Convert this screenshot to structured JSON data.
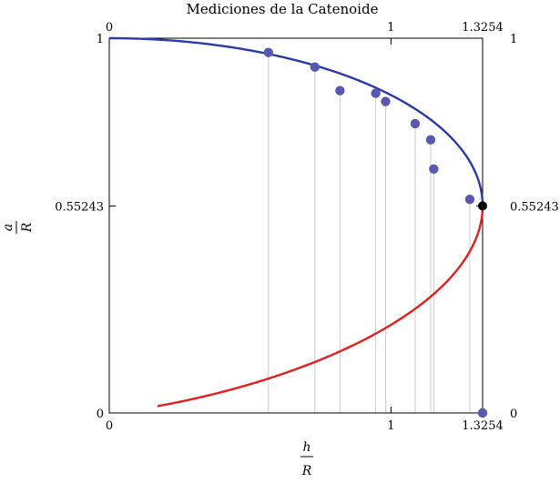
{
  "chart_data": {
    "type": "scatter",
    "title": "Mediciones de la Catenoide",
    "xlabel_num": "h",
    "xlabel_den": "R",
    "ylabel_num": "a",
    "ylabel_den": "R",
    "xlim": [
      0,
      1.3254
    ],
    "ylim": [
      0,
      1
    ],
    "grid": false,
    "x_ticks_bottom": [
      {
        "value": 0,
        "label": "0"
      },
      {
        "value": 1,
        "label": "1"
      },
      {
        "value": 1.3254,
        "label": "1.3254"
      }
    ],
    "x_ticks_top": [
      {
        "value": 0,
        "label": "0"
      },
      {
        "value": 1,
        "label": "1"
      },
      {
        "value": 1.3254,
        "label": "1.3254"
      }
    ],
    "y_ticks_left": [
      {
        "value": 0,
        "label": "0"
      },
      {
        "value": 0.55243,
        "label": "0.55243"
      },
      {
        "value": 1,
        "label": "1"
      }
    ],
    "y_ticks_right": [
      {
        "value": 0,
        "label": "0"
      },
      {
        "value": 0.55243,
        "label": "0.55243"
      },
      {
        "value": 1,
        "label": "1"
      }
    ],
    "curves": [
      {
        "branch": "upper",
        "color": "#2b3aa8"
      },
      {
        "branch": "lower",
        "color": "#e02020"
      }
    ],
    "critical_point": {
      "x": 1.3254,
      "y": 0.55243,
      "color": "#000000"
    },
    "points": [
      {
        "x": 0.565,
        "y": 0.962
      },
      {
        "x": 0.73,
        "y": 0.923
      },
      {
        "x": 0.819,
        "y": 0.86
      },
      {
        "x": 0.946,
        "y": 0.853
      },
      {
        "x": 0.981,
        "y": 0.831
      },
      {
        "x": 1.086,
        "y": 0.772
      },
      {
        "x": 1.141,
        "y": 0.729
      },
      {
        "x": 1.152,
        "y": 0.651
      },
      {
        "x": 1.28,
        "y": 0.57
      },
      {
        "x": 1.3254,
        "y": 0.0
      }
    ],
    "point_color": "#5858b0"
  }
}
